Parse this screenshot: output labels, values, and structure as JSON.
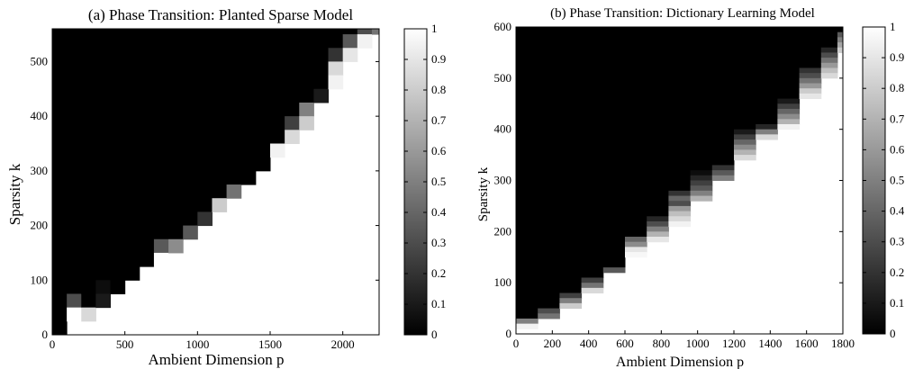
{
  "chart_data": [
    {
      "type": "heatmap",
      "title": "(a) Phase Transition: Planted Sparse Model",
      "xlabel": "Ambient Dimension p",
      "ylabel": "Sparsity k",
      "xlim": [
        0,
        2250
      ],
      "ylim": [
        0,
        560
      ],
      "xticks": [
        0,
        500,
        1000,
        1500,
        2000
      ],
      "yticks": [
        0,
        100,
        200,
        300,
        400,
        500
      ],
      "colorbar": {
        "min": 0,
        "max": 1,
        "ticks": [
          0,
          0.1,
          0.2,
          0.3,
          0.4,
          0.5,
          0.6,
          0.7,
          0.8,
          0.9,
          1
        ],
        "colormap": "gray"
      },
      "grid": false,
      "background_value": 1,
      "region_value": 0,
      "x_step": 100,
      "y_step": 25,
      "boundary": [
        {
          "x": 0,
          "k": 0,
          "g": [
            0.0
          ]
        },
        {
          "x": 100,
          "k": 25,
          "g": [
            0.3,
            1.0
          ]
        },
        {
          "x": 200,
          "k": 25,
          "g": [
            0.0,
            0.85
          ]
        },
        {
          "x": 300,
          "k": 50,
          "g": [
            0.05,
            0.1
          ]
        },
        {
          "x": 400,
          "k": 75,
          "g": [
            0.0
          ]
        },
        {
          "x": 500,
          "k": 100,
          "g": [
            0.0
          ]
        },
        {
          "x": 600,
          "k": 125,
          "g": [
            0.0
          ]
        },
        {
          "x": 700,
          "k": 125,
          "g": [
            0.0,
            0.35,
            1.0
          ]
        },
        {
          "x": 800,
          "k": 150,
          "g": [
            0.0,
            0.55
          ]
        },
        {
          "x": 900,
          "k": 175,
          "g": [
            0.0,
            0.35
          ]
        },
        {
          "x": 1000,
          "k": 200,
          "g": [
            0.0,
            0.2
          ]
        },
        {
          "x": 1100,
          "k": 225,
          "g": [
            0.0,
            0.8
          ]
        },
        {
          "x": 1200,
          "k": 250,
          "g": [
            0.0,
            0.45
          ]
        },
        {
          "x": 1300,
          "k": 275,
          "g": [
            0.0
          ]
        },
        {
          "x": 1400,
          "k": 300,
          "g": [
            0.0
          ]
        },
        {
          "x": 1500,
          "k": 325,
          "g": [
            0.0,
            0.95
          ]
        },
        {
          "x": 1600,
          "k": 350,
          "g": [
            0.0,
            0.25,
            0.85
          ]
        },
        {
          "x": 1700,
          "k": 375,
          "g": [
            0.0,
            0.5,
            0.8
          ]
        },
        {
          "x": 1800,
          "k": 425,
          "g": [
            0.0,
            0.1
          ]
        },
        {
          "x": 1900,
          "k": 450,
          "g": [
            0.0,
            0.2,
            0.85,
            0.95
          ]
        },
        {
          "x": 2000,
          "k": 500,
          "g": [
            0.0,
            0.35,
            0.9
          ]
        },
        {
          "x": 2100,
          "k": 525,
          "g": [
            0.0,
            0.3,
            0.95
          ]
        },
        {
          "x": 2200,
          "k": 550,
          "g": [
            0.45
          ]
        }
      ]
    },
    {
      "type": "heatmap",
      "title": "(b) Phase Transition: Dictionary Learning Model",
      "xlabel": "Ambient Dimension p",
      "ylabel": "Sparsity k",
      "xlim": [
        0,
        1800
      ],
      "ylim": [
        0,
        600
      ],
      "xticks": [
        0,
        200,
        400,
        600,
        800,
        1000,
        1200,
        1400,
        1600,
        1800
      ],
      "yticks": [
        0,
        100,
        200,
        300,
        400,
        500,
        600
      ],
      "colorbar": {
        "min": 0,
        "max": 1,
        "ticks": [
          0,
          0.1,
          0.2,
          0.3,
          0.4,
          0.5,
          0.6,
          0.7,
          0.8,
          0.9,
          1
        ],
        "colormap": "gray"
      },
      "grid": false,
      "background_value": 1,
      "region_value": 0,
      "x_step": 120,
      "y_step": 10,
      "boundary": [
        {
          "x": 0,
          "k": 10,
          "g": [
            0.5,
            0.95
          ]
        },
        {
          "x": 120,
          "k": 30,
          "g": [
            0.3,
            0.45
          ]
        },
        {
          "x": 240,
          "k": 50,
          "g": [
            0.0,
            0.25,
            0.5,
            0.8
          ]
        },
        {
          "x": 360,
          "k": 80,
          "g": [
            0.0,
            0.25,
            0.45,
            0.85
          ]
        },
        {
          "x": 480,
          "k": 120,
          "g": [
            0.0,
            0.35
          ]
        },
        {
          "x": 600,
          "k": 150,
          "g": [
            0.0,
            0.4,
            0.55,
            0.9,
            0.97
          ]
        },
        {
          "x": 720,
          "k": 180,
          "g": [
            0.0,
            0.15,
            0.3,
            0.5,
            0.7,
            0.9
          ]
        },
        {
          "x": 840,
          "k": 210,
          "g": [
            0.0,
            0.2,
            0.4,
            0.3,
            0.6,
            0.75,
            0.85,
            0.95
          ]
        },
        {
          "x": 960,
          "k": 260,
          "g": [
            0.0,
            0.05,
            0.15,
            0.25,
            0.35,
            0.5,
            0.7
          ]
        },
        {
          "x": 1080,
          "k": 300,
          "g": [
            0.0,
            0.2,
            0.35,
            0.5
          ]
        },
        {
          "x": 1200,
          "k": 340,
          "g": [
            0.0,
            0.1,
            0.25,
            0.4,
            0.55,
            0.7,
            0.85
          ]
        },
        {
          "x": 1320,
          "k": 380,
          "g": [
            0.0,
            0.15,
            0.5,
            0.85
          ]
        },
        {
          "x": 1440,
          "k": 400,
          "g": [
            0.0,
            0.1,
            0.25,
            0.4,
            0.55,
            0.7,
            0.95
          ]
        },
        {
          "x": 1560,
          "k": 460,
          "g": [
            0.0,
            0.2,
            0.3,
            0.45,
            0.6,
            0.8,
            0.9
          ]
        },
        {
          "x": 1680,
          "k": 500,
          "g": [
            0.0,
            0.15,
            0.3,
            0.45,
            0.6,
            0.75,
            0.85
          ]
        },
        {
          "x": 1770,
          "k": 550,
          "g": [
            0.35,
            0.5,
            0.65,
            0.8
          ]
        }
      ]
    }
  ]
}
